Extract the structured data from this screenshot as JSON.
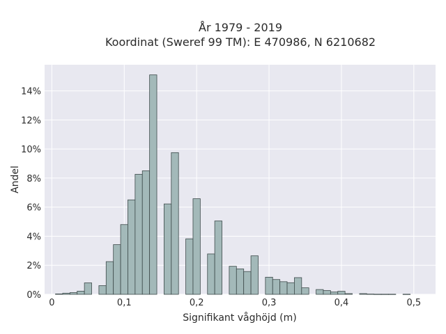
{
  "chart_data": {
    "type": "bar",
    "title_line1": "År 1979 - 2019",
    "title_line2": "Koordinat (Sweref 99 TM): E 470986, N 6210682",
    "xlabel": "Signifikant våghöjd (m)",
    "ylabel": "Andel",
    "xlim": [
      -0.01,
      0.53
    ],
    "ylim": [
      0,
      0.158
    ],
    "x_ticks": [
      0,
      0.1,
      0.2,
      0.3,
      0.4,
      0.5
    ],
    "x_tick_labels": [
      "0",
      "0,1",
      "0,2",
      "0,3",
      "0,4",
      "0,5"
    ],
    "y_ticks": [
      0,
      0.02,
      0.04,
      0.06,
      0.08,
      0.1,
      0.12,
      0.14
    ],
    "y_tick_labels": [
      "0%",
      "2%",
      "4%",
      "6%",
      "8%",
      "10%",
      "12%",
      "14%"
    ],
    "grid": true,
    "bin_width": 0.01,
    "bins": [
      {
        "x": 0.01,
        "y": 0.0003
      },
      {
        "x": 0.02,
        "y": 0.0008
      },
      {
        "x": 0.03,
        "y": 0.0012
      },
      {
        "x": 0.04,
        "y": 0.0022
      },
      {
        "x": 0.05,
        "y": 0.0079
      },
      {
        "x": 0.07,
        "y": 0.006
      },
      {
        "x": 0.08,
        "y": 0.0225
      },
      {
        "x": 0.09,
        "y": 0.0342
      },
      {
        "x": 0.1,
        "y": 0.048
      },
      {
        "x": 0.11,
        "y": 0.065
      },
      {
        "x": 0.12,
        "y": 0.0826
      },
      {
        "x": 0.13,
        "y": 0.085
      },
      {
        "x": 0.14,
        "y": 0.151
      },
      {
        "x": 0.16,
        "y": 0.0622
      },
      {
        "x": 0.17,
        "y": 0.0975
      },
      {
        "x": 0.19,
        "y": 0.0382
      },
      {
        "x": 0.2,
        "y": 0.0658
      },
      {
        "x": 0.22,
        "y": 0.0278
      },
      {
        "x": 0.23,
        "y": 0.0505
      },
      {
        "x": 0.25,
        "y": 0.0193
      },
      {
        "x": 0.26,
        "y": 0.0175
      },
      {
        "x": 0.27,
        "y": 0.0157
      },
      {
        "x": 0.28,
        "y": 0.0265
      },
      {
        "x": 0.3,
        "y": 0.0118
      },
      {
        "x": 0.31,
        "y": 0.0102
      },
      {
        "x": 0.32,
        "y": 0.0087
      },
      {
        "x": 0.33,
        "y": 0.008
      },
      {
        "x": 0.34,
        "y": 0.0115
      },
      {
        "x": 0.35,
        "y": 0.0045
      },
      {
        "x": 0.37,
        "y": 0.0033
      },
      {
        "x": 0.38,
        "y": 0.0026
      },
      {
        "x": 0.39,
        "y": 0.0016
      },
      {
        "x": 0.4,
        "y": 0.0021
      },
      {
        "x": 0.41,
        "y": 0.0005
      },
      {
        "x": 0.43,
        "y": 0.0005
      },
      {
        "x": 0.44,
        "y": 0.0002
      },
      {
        "x": 0.45,
        "y": 0.0001
      },
      {
        "x": 0.46,
        "y": 0.0001
      },
      {
        "x": 0.47,
        "y": 0.0001
      },
      {
        "x": 0.49,
        "y": 0.0001
      }
    ],
    "colors": {
      "plot_background": "#e8e8f0",
      "bar_fill": "#a3b9b9",
      "bar_edge": "#3d4a4a",
      "grid": "#ffffff"
    }
  }
}
